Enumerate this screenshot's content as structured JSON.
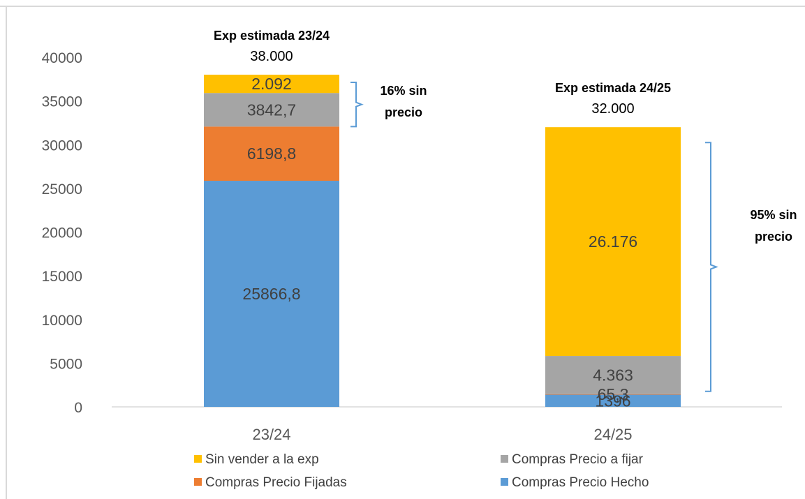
{
  "chart_data": {
    "type": "bar",
    "stacked": true,
    "categories": [
      "23/24",
      "24/25"
    ],
    "series": [
      {
        "name": "Compras Precio Hecho",
        "color": "#5b9bd5",
        "values": [
          25866.8,
          1396
        ],
        "labels": [
          "25866,8",
          "1396"
        ]
      },
      {
        "name": "Compras Precio Fijadas",
        "color": "#ed7d31",
        "values": [
          6198.8,
          65.3
        ],
        "labels": [
          "6198,8",
          "65,3"
        ]
      },
      {
        "name": "Compras Precio a fijar",
        "color": "#a5a5a5",
        "values": [
          3842.7,
          4363
        ],
        "labels": [
          "3842,7",
          "4.363"
        ]
      },
      {
        "name": "Sin vender a la exp",
        "color": "#ffc000",
        "values": [
          2092,
          26176
        ],
        "labels": [
          "2.092",
          "26.176"
        ]
      }
    ],
    "totals": [
      {
        "name": "Exp estimada 23/24",
        "value": "38.000"
      },
      {
        "name": "Exp estimada 24/25",
        "value": "32.000"
      }
    ],
    "annotations": [
      {
        "lines": [
          "16% sin",
          "precio"
        ]
      },
      {
        "lines": [
          "95% sin",
          "precio"
        ]
      }
    ],
    "yticks": [
      "0",
      "5000",
      "10000",
      "15000",
      "20000",
      "25000",
      "30000",
      "35000",
      "40000"
    ],
    "ylim": [
      0,
      40000
    ],
    "legend": {
      "position": "bottom",
      "order": [
        "Sin vender a la exp",
        "Compras Precio a fijar",
        "Compras Precio Fijadas",
        "Compras Precio Hecho"
      ]
    },
    "grid": false,
    "bracket_color": "#5b9bd5"
  }
}
